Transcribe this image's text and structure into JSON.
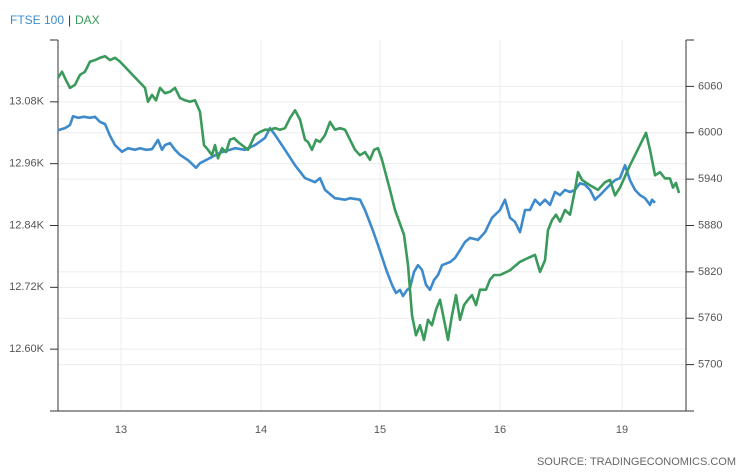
{
  "chart_data": {
    "type": "line",
    "legend_separator": "|",
    "source": "SOURCE: TRADINGECONOMICS.COM",
    "xlim": [
      0,
      628
    ],
    "xticks": [
      {
        "value": 63,
        "label": "13"
      },
      {
        "value": 203,
        "label": "14"
      },
      {
        "value": 322,
        "label": "15"
      },
      {
        "value": 442,
        "label": "16"
      },
      {
        "value": 564,
        "label": "19"
      }
    ],
    "ylim": [
      12480,
      13200
    ],
    "yticks": [
      {
        "value": 12600,
        "label": "12.60K"
      },
      {
        "value": 12720,
        "label": "12.72K"
      },
      {
        "value": 12840,
        "label": "12.84K"
      },
      {
        "value": 12960,
        "label": "12.96K"
      },
      {
        "value": 13080,
        "label": "13.08K"
      }
    ],
    "y2lim": [
      5640,
      6120
    ],
    "y2ticks": [
      5700,
      5760,
      5820,
      5880,
      5940,
      6000,
      6060
    ],
    "grid": true,
    "series": [
      {
        "name": "FTSE 100",
        "color": "#3d8bcd",
        "axis": "y",
        "x": [
          0,
          7,
          12,
          15,
          20,
          26,
          32,
          37,
          42,
          47,
          52,
          57,
          64,
          70,
          77,
          82,
          88,
          94,
          100,
          104,
          107,
          112,
          117,
          122,
          130,
          138,
          142,
          152,
          162,
          177,
          187,
          197,
          207,
          212,
          217,
          227,
          237,
          247,
          257,
          262,
          267,
          277,
          287,
          292,
          302,
          307,
          314,
          320,
          325,
          329,
          334,
          338,
          342,
          345,
          349,
          352,
          356,
          360,
          364,
          368,
          372,
          376,
          380,
          384,
          392,
          397,
          402,
          407,
          412,
          420,
          427,
          434,
          442,
          447,
          452,
          457,
          462,
          467,
          472,
          477,
          482,
          487,
          492,
          497,
          502,
          507,
          512,
          517,
          522,
          527,
          532,
          537,
          542,
          547,
          552,
          557,
          562,
          567,
          572,
          577,
          582,
          587,
          592,
          594,
          597
        ],
        "values": [
          13025,
          13029,
          13035,
          13052,
          13049,
          13051,
          13049,
          13051,
          13041,
          13037,
          13014,
          12996,
          12983,
          12990,
          12987,
          12990,
          12987,
          12988,
          13006,
          12987,
          12996,
          13000,
          12987,
          12977,
          12967,
          12952,
          12961,
          12971,
          12981,
          12990,
          12987,
          12996,
          13010,
          13029,
          13016,
          12987,
          12957,
          12932,
          12924,
          12932,
          12909,
          12893,
          12890,
          12893,
          12890,
          12870,
          12835,
          12802,
          12773,
          12750,
          12725,
          12709,
          12715,
          12703,
          12715,
          12719,
          12750,
          12763,
          12754,
          12725,
          12715,
          12734,
          12744,
          12763,
          12769,
          12777,
          12792,
          12808,
          12816,
          12812,
          12827,
          12855,
          12870,
          12890,
          12855,
          12847,
          12827,
          12870,
          12870,
          12890,
          12880,
          12890,
          12880,
          12905,
          12899,
          12909,
          12905,
          12909,
          12922,
          12919,
          12909,
          12890,
          12899,
          12909,
          12919,
          12928,
          12932,
          12957,
          12928,
          12909,
          12899,
          12893,
          12880,
          12890,
          12884
        ]
      },
      {
        "name": "DAX",
        "color": "#3a9a5b",
        "axis": "y2",
        "x": [
          0,
          4,
          8,
          12,
          17,
          22,
          27,
          32,
          37,
          42,
          47,
          52,
          57,
          62,
          87,
          90,
          94,
          98,
          102,
          107,
          112,
          117,
          122,
          127,
          132,
          137,
          142,
          146,
          150,
          154,
          157,
          160,
          164,
          168,
          172,
          176,
          180,
          184,
          190,
          197,
          202,
          207,
          212,
          217,
          222,
          227,
          232,
          237,
          242,
          247,
          250,
          254,
          258,
          262,
          267,
          272,
          277,
          282,
          287,
          292,
          297,
          302,
          307,
          312,
          316,
          320,
          324,
          332,
          337,
          346,
          350,
          354,
          358,
          362,
          366,
          370,
          374,
          378,
          382,
          386,
          390,
          394,
          398,
          402,
          406,
          410,
          414,
          418,
          422,
          428,
          432,
          436,
          442,
          452,
          462,
          470,
          477,
          482,
          487,
          490,
          494,
          498,
          502,
          507,
          512,
          517,
          520,
          524,
          532,
          540,
          547,
          552,
          557,
          562,
          572,
          582,
          588,
          592,
          597,
          602,
          607,
          612,
          615,
          618,
          621
        ],
        "values": [
          6071,
          6079,
          6068,
          6058,
          6062,
          6075,
          6079,
          6092,
          6094,
          6097,
          6099,
          6094,
          6097,
          6092,
          6058,
          6040,
          6049,
          6042,
          6058,
          6051,
          6053,
          6058,
          6045,
          6042,
          6040,
          6042,
          6027,
          5984,
          5978,
          5971,
          5984,
          5967,
          5980,
          5975,
          5991,
          5993,
          5988,
          5984,
          5978,
          5997,
          6001,
          6004,
          6004,
          6006,
          6004,
          6006,
          6019,
          6029,
          6017,
          5991,
          5988,
          5978,
          5991,
          5988,
          5997,
          6014,
          6004,
          6006,
          6004,
          5991,
          5978,
          5971,
          5975,
          5965,
          5978,
          5980,
          5965,
          5926,
          5900,
          5868,
          5829,
          5764,
          5738,
          5751,
          5732,
          5758,
          5751,
          5771,
          5784,
          5758,
          5732,
          5764,
          5790,
          5758,
          5777,
          5784,
          5790,
          5777,
          5797,
          5797,
          5810,
          5816,
          5816,
          5822,
          5833,
          5838,
          5842,
          5820,
          5835,
          5874,
          5887,
          5894,
          5885,
          5900,
          5894,
          5926,
          5949,
          5939,
          5932,
          5926,
          5936,
          5939,
          5919,
          5929,
          5958,
          5984,
          6000,
          5978,
          5945,
          5949,
          5941,
          5941,
          5929,
          5935,
          5922
        ]
      }
    ]
  }
}
